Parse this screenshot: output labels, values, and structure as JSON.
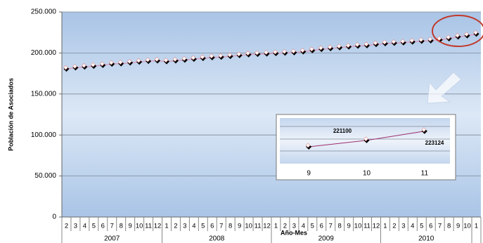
{
  "chart_data": [
    {
      "type": "line",
      "y_label": "Población de Asociados",
      "x_label": "Año-Mes",
      "grid": true,
      "color": "#d9a0c0",
      "categories": [
        "2",
        "3",
        "4",
        "5",
        "6",
        "7",
        "8",
        "9",
        "10",
        "11",
        "12",
        "1",
        "2",
        "3",
        "4",
        "5",
        "6",
        "7",
        "8",
        "9",
        "10",
        "11",
        "12",
        "1",
        "2",
        "3",
        "4",
        "5",
        "6",
        "7",
        "8",
        "9",
        "10",
        "11",
        "12",
        "1",
        "2",
        "3",
        "4",
        "5",
        "6",
        "7",
        "8",
        "9",
        "10",
        "1"
      ],
      "x_groups": [
        "2007",
        "2008",
        "2009",
        "2010"
      ],
      "values": [
        180500,
        182000,
        183000,
        184000,
        185000,
        186500,
        187000,
        188000,
        189000,
        190000,
        190500,
        189500,
        190500,
        191500,
        192500,
        193500,
        194500,
        195000,
        196000,
        197000,
        198000,
        198500,
        199000,
        199500,
        200000,
        200500,
        201500,
        203000,
        204500,
        205500,
        206500,
        207500,
        208500,
        209000,
        210500,
        211500,
        212000,
        212500,
        213500,
        214500,
        215000,
        216000,
        217500,
        219700,
        221100,
        223124
      ],
      "ylim": [
        0,
        250000
      ],
      "yticks": [
        0,
        {
          "value": 50000,
          "label": "50.000"
        },
        {
          "value": 100000,
          "label": "100.000"
        },
        {
          "value": 150000,
          "label": "150.000"
        },
        {
          "value": 200000,
          "label": "200.000"
        },
        {
          "value": 250000,
          "label": "250.000"
        }
      ]
    },
    {
      "type": "line",
      "color": "#9b2c6e",
      "categories": [
        "9",
        "10",
        "11"
      ],
      "values": [
        219700,
        221100,
        223124
      ],
      "ylim": [
        216000,
        226000
      ]
    }
  ]
}
